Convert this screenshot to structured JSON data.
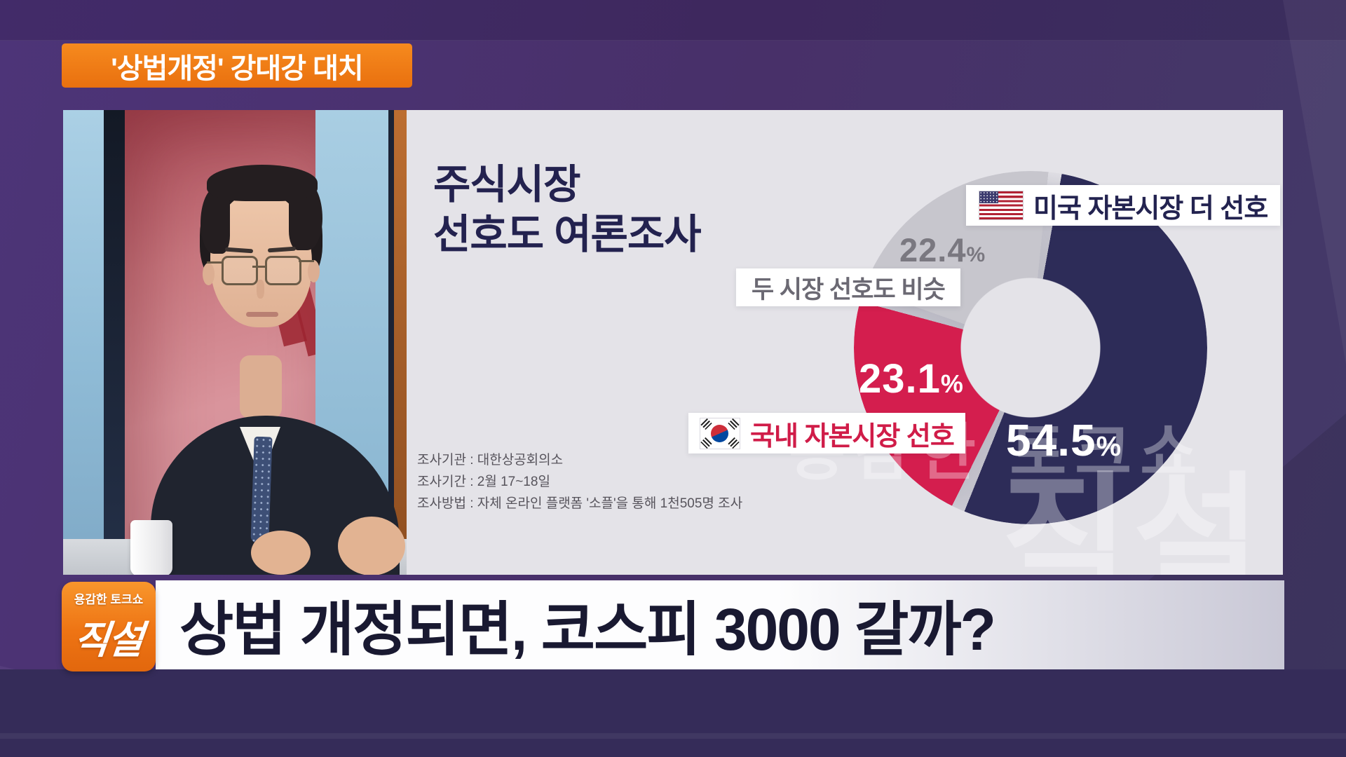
{
  "badge": {
    "label": "'상법개정' 강대강 대치"
  },
  "panel": {
    "title_line1": "주식시장",
    "title_line2": "선호도 여론조사"
  },
  "chart_data": {
    "type": "pie",
    "title": "주식시장 선호도 여론조사",
    "unit": "%",
    "rotation_deg": 8,
    "gap_deg": 4.4,
    "slices": [
      {
        "label": "미국 자본시장 더 선호",
        "value": 54.5,
        "color": "#2d2c58",
        "flag": "us"
      },
      {
        "label": "국내 자본시장 선호",
        "value": 23.1,
        "color": "#d41e4e",
        "flag": "kr"
      },
      {
        "label": "두 시장 선호도 비슷",
        "value": 22.4,
        "color": "#c7c6cd",
        "flag": null
      }
    ],
    "notes": [
      "조사기관 : 대한상공회의소",
      "조사기간 : 2월 17~18일",
      "조사방법 : 자체 온라인 플랫폼 '소플'을 통해 1천505명 조사"
    ]
  },
  "ui": {
    "percent": "%"
  },
  "watermark": {
    "line1": "용감한 토크쇼",
    "line2": "직설"
  },
  "logo": {
    "top_label": "용감한 토크쇼",
    "main_label": "직설"
  },
  "headline": {
    "text": "상법 개정되면, 코스피 3000 갈까?"
  },
  "colors": {
    "background_purple": "#46306c",
    "panel_background": "#e4e3e8",
    "accent_orange": "#ee7a16",
    "navy": "#2d2c58",
    "red": "#d41e4e",
    "gray": "#c7c6cd"
  }
}
